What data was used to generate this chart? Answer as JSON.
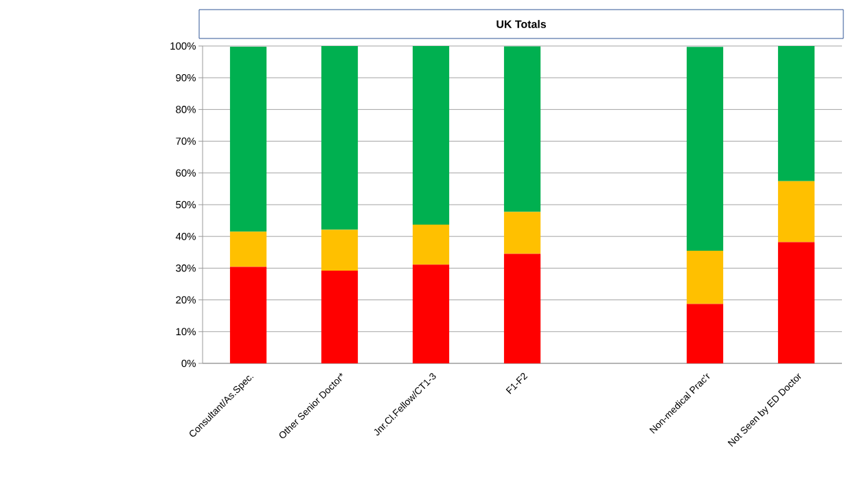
{
  "chart_data": {
    "type": "bar",
    "title": "UK Totals",
    "stacked": true,
    "categories": [
      "Consultant/As.Spec.",
      "Other Senior Doctor*",
      "Jnr.Cl.Fellow/CT1-3",
      "F1-F2",
      null,
      "Non-medical Prac'r",
      "Not Seen by ED Doctor"
    ],
    "series": [
      {
        "color": "#ff0000",
        "values": [
          30.4,
          29.2,
          31.1,
          34.5,
          null,
          18.7,
          38.2
        ]
      },
      {
        "color": "#ffc000",
        "values": [
          11.1,
          12.9,
          12.6,
          13.2,
          null,
          16.8,
          19.2
        ]
      },
      {
        "color": "#00b050",
        "values": [
          58.3,
          57.9,
          56.3,
          52.2,
          null,
          64.2,
          42.6
        ]
      }
    ],
    "ylim": [
      0,
      100
    ],
    "yticks": [
      {
        "value": 0,
        "label": "0%"
      },
      {
        "value": 10,
        "label": "10%"
      },
      {
        "value": 20,
        "label": "20%"
      },
      {
        "value": 30,
        "label": "30%"
      },
      {
        "value": 40,
        "label": "40%"
      },
      {
        "value": 50,
        "label": "50%"
      },
      {
        "value": 60,
        "label": "60%"
      },
      {
        "value": 70,
        "label": "70%"
      },
      {
        "value": 80,
        "label": "80%"
      },
      {
        "value": 90,
        "label": "90%"
      },
      {
        "value": 100,
        "label": "100%"
      }
    ],
    "grid": "y"
  }
}
